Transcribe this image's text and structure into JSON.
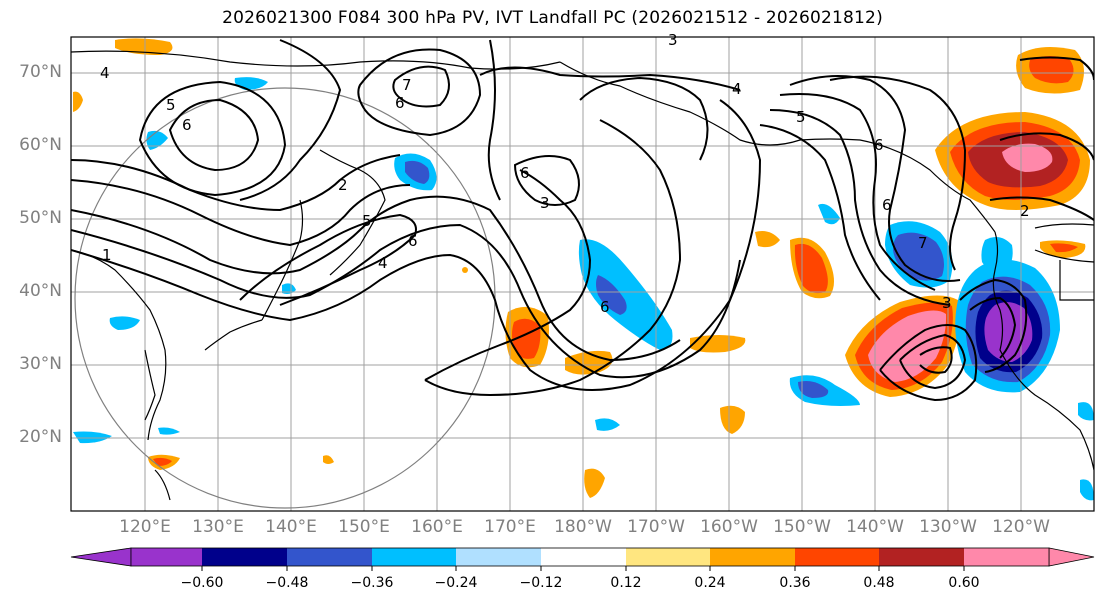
{
  "title": "2026021300 F084 300 hPa PV, IVT Landfall PC (2026021512 - 2026021812)",
  "map": {
    "lat_labels": [
      "70°N",
      "60°N",
      "50°N",
      "40°N",
      "30°N",
      "20°N"
    ],
    "lon_labels": [
      "120°E",
      "130°E",
      "140°E",
      "150°E",
      "160°E",
      "170°E",
      "180°W",
      "170°W",
      "160°W",
      "150°W",
      "140°W",
      "130°W",
      "120°W"
    ],
    "contour_labels": [
      "3",
      "4",
      "5",
      "6",
      "7",
      "6",
      "6",
      "2",
      "5",
      "6",
      "4",
      "1",
      "6",
      "3",
      "4",
      "5",
      "6",
      "6",
      "7",
      "3",
      "2"
    ]
  },
  "colorbar": {
    "ticks": [
      "−0.60",
      "−0.48",
      "−0.36",
      "−0.24",
      "−0.12",
      "0.12",
      "0.24",
      "0.36",
      "0.48",
      "0.60"
    ],
    "colors": [
      "#9933cc",
      "#00008b",
      "#3355cc",
      "#00bfff",
      "#b0e0ff",
      "#ffffff",
      "#ffe680",
      "#ffa500",
      "#ff4500",
      "#b22222",
      "#ff88aa"
    ]
  }
}
